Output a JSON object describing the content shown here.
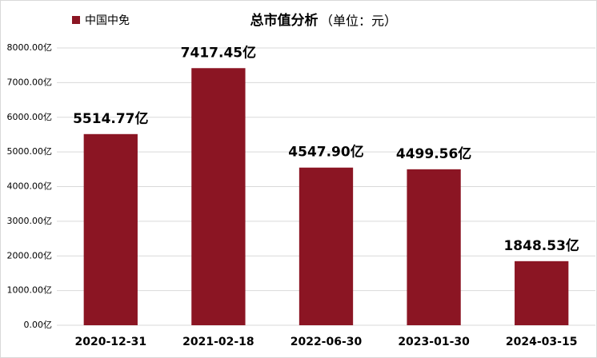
{
  "chart_data": {
    "type": "bar",
    "title": "总市值分析",
    "subtitle": "（单位：元）",
    "categories": [
      "2020-12-31",
      "2021-02-18",
      "2022-06-30",
      "2023-01-30",
      "2024-03-15"
    ],
    "series": [
      {
        "name": "中国中免",
        "color": "#8b1523",
        "values": [
          5514.77,
          7417.45,
          4547.9,
          4499.56,
          1848.53
        ],
        "value_labels": [
          "5514.77亿",
          "7417.45亿",
          "4547.90亿",
          "4499.56亿",
          "1848.53亿"
        ]
      }
    ],
    "ylim": [
      0,
      8000
    ],
    "yticks": [
      {
        "value": 0,
        "label": "0.00亿"
      },
      {
        "value": 1000,
        "label": "1000.00亿"
      },
      {
        "value": 2000,
        "label": "2000.00亿"
      },
      {
        "value": 3000,
        "label": "3000.00亿"
      },
      {
        "value": 4000,
        "label": "4000.00亿"
      },
      {
        "value": 5000,
        "label": "5000.00亿"
      },
      {
        "value": 6000,
        "label": "6000.00亿"
      },
      {
        "value": 7000,
        "label": "7000.00亿"
      },
      {
        "value": 8000,
        "label": "8000.00亿"
      }
    ],
    "grid": true,
    "legend": "top-left"
  }
}
